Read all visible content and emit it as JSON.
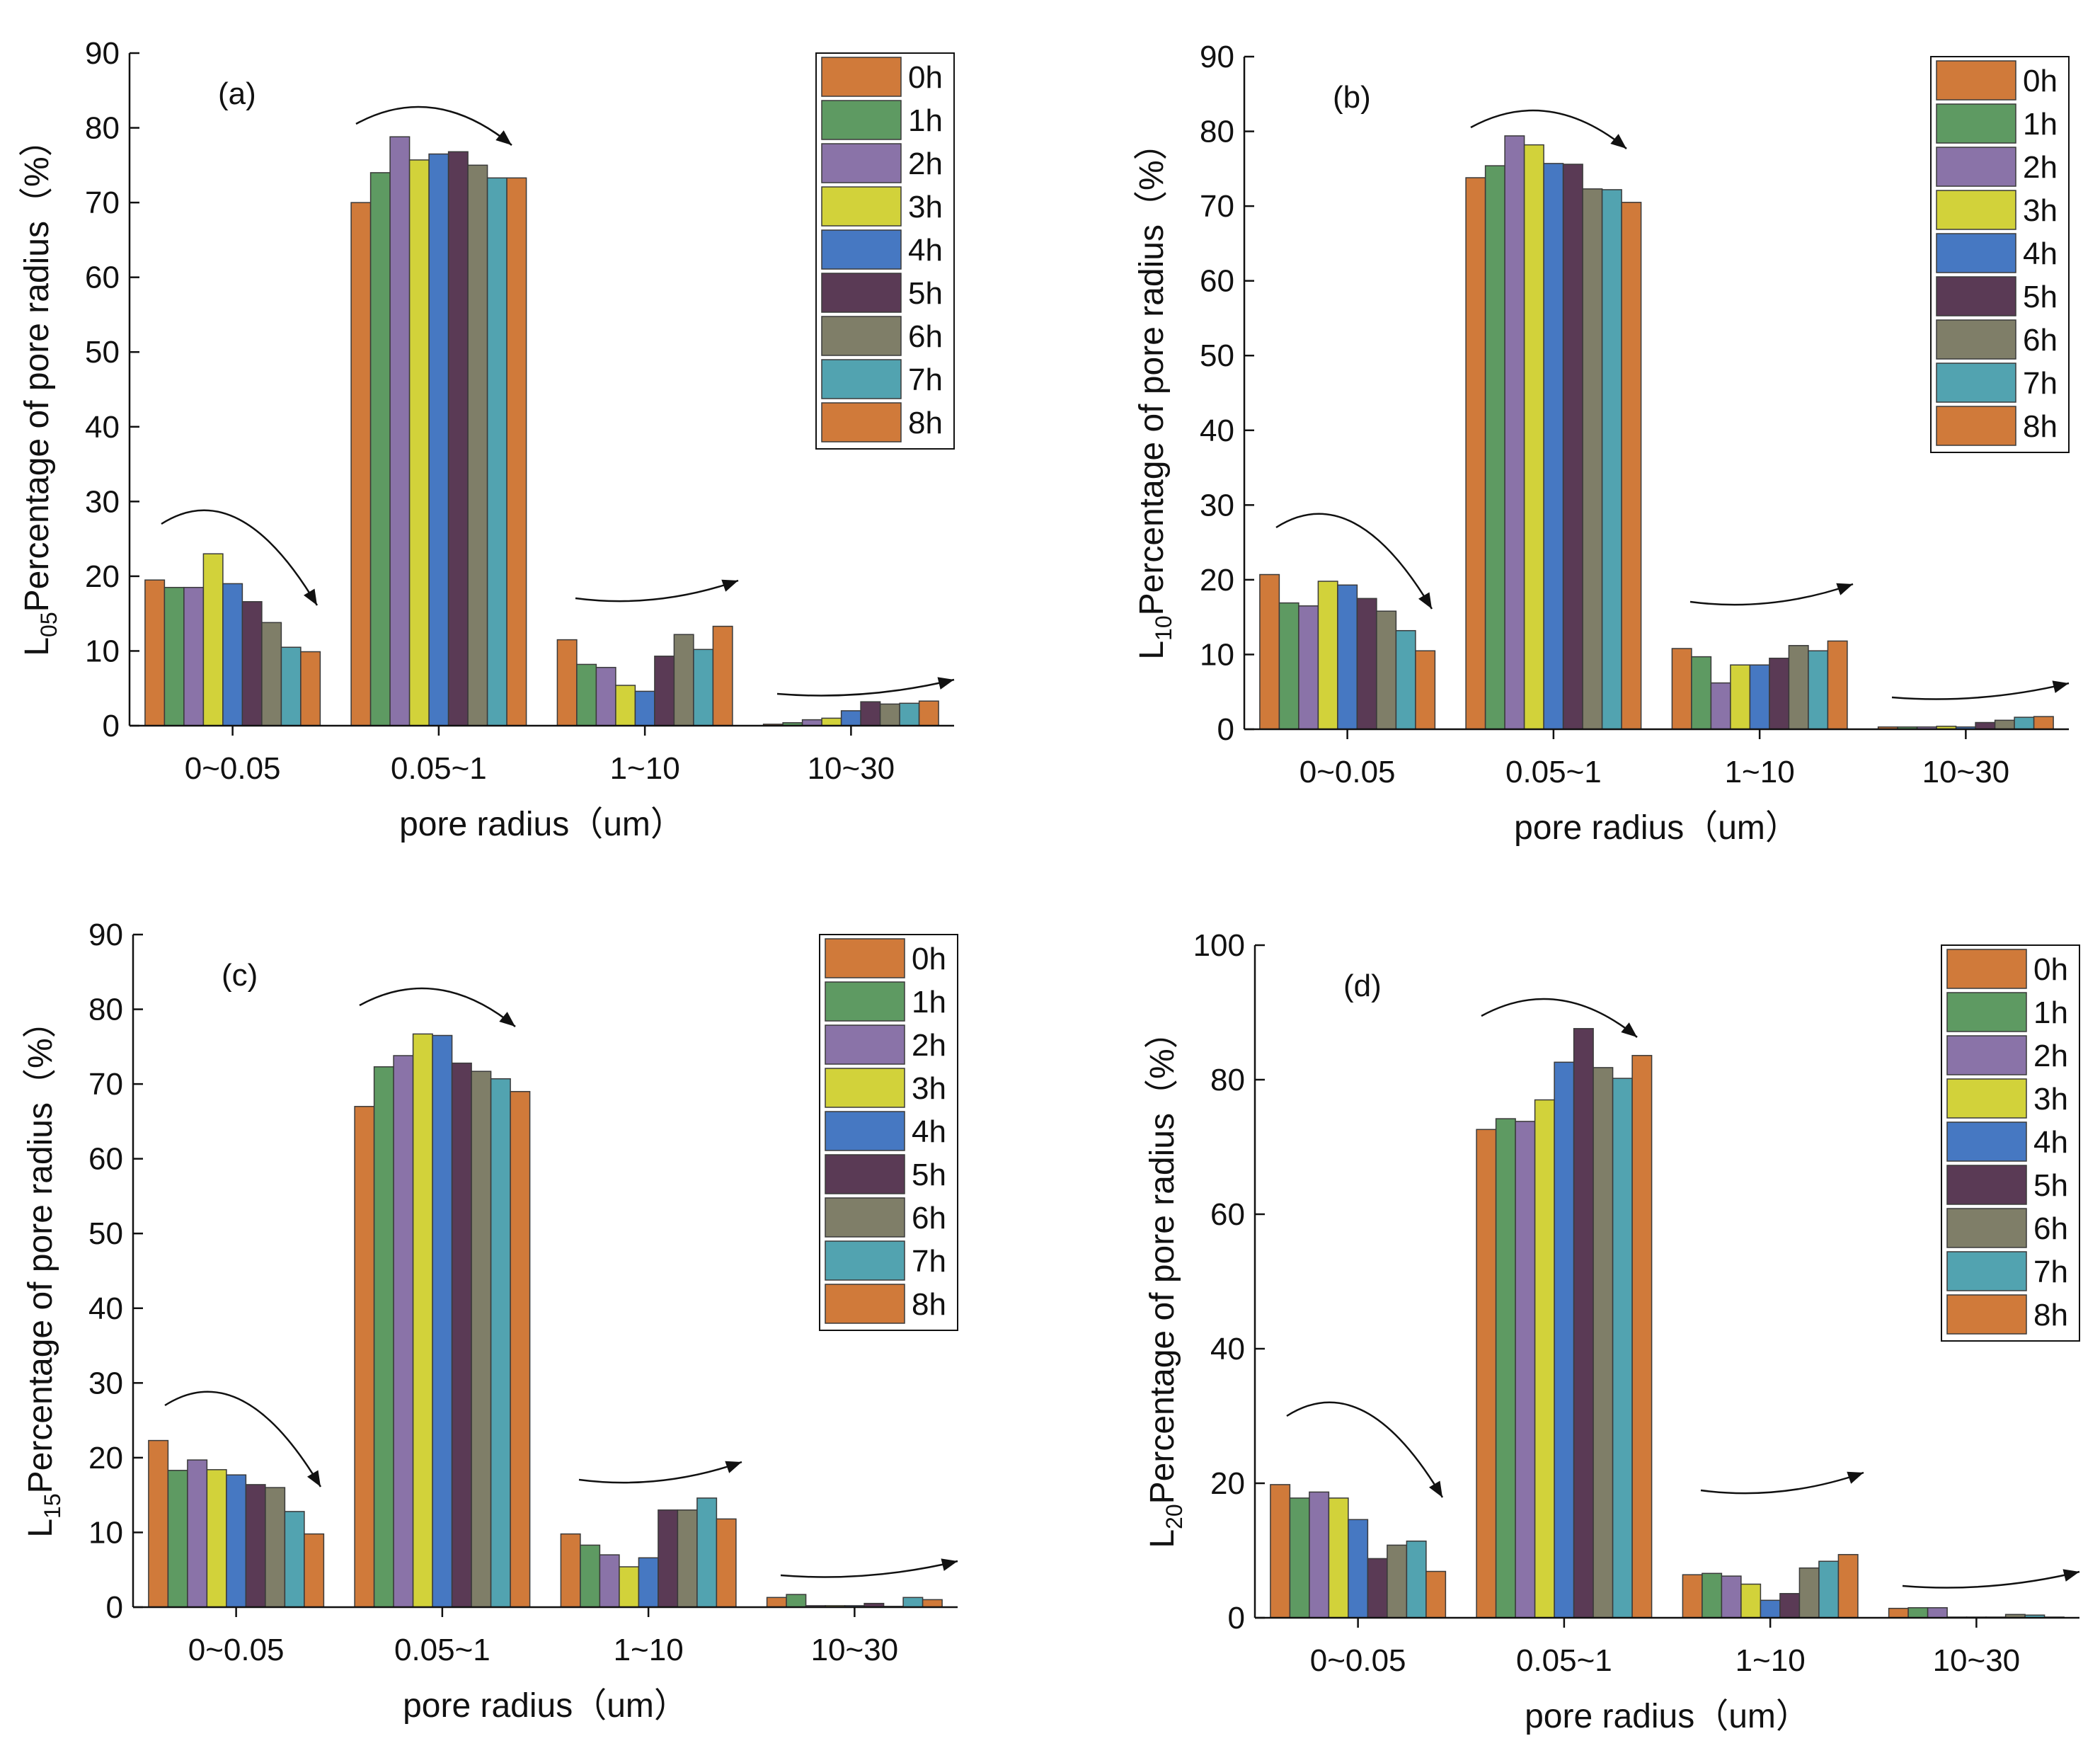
{
  "colors": {
    "0h": "#D07A3A",
    "1h": "#5E9A62",
    "2h": "#8A73A8",
    "3h": "#D2D23A",
    "4h": "#4678C2",
    "5h": "#5A3A55",
    "6h": "#7F7E68",
    "7h": "#52A3B0",
    "8h": "#D07A3A"
  },
  "chart_data": [
    {
      "type": "bar",
      "panel": "(a)",
      "ylabel_prefix": "L",
      "ylabel_sub": "05",
      "ylabel_text": "Percentage of pore radius（%）",
      "xlabel": "pore radius（um）",
      "categories": [
        "0~0.05",
        "0.05~1",
        "1~10",
        "10~30"
      ],
      "ylim": [
        0,
        90
      ],
      "yticks": [
        0,
        10,
        20,
        30,
        40,
        50,
        60,
        70,
        80,
        90
      ],
      "legend_position": "top-right",
      "series": [
        {
          "name": "0h",
          "values": [
            19.5,
            70,
            11.5,
            0.2
          ]
        },
        {
          "name": "1h",
          "values": [
            18.5,
            74,
            8.2,
            0.4
          ]
        },
        {
          "name": "2h",
          "values": [
            18.5,
            78.8,
            7.8,
            0.8
          ]
        },
        {
          "name": "3h",
          "values": [
            23,
            75.7,
            5.4,
            1
          ]
        },
        {
          "name": "4h",
          "values": [
            19,
            76.5,
            4.6,
            2
          ]
        },
        {
          "name": "5h",
          "values": [
            16.6,
            76.8,
            9.3,
            3.2
          ]
        },
        {
          "name": "6h",
          "values": [
            13.8,
            75,
            12.2,
            2.9
          ]
        },
        {
          "name": "7h",
          "values": [
            10.5,
            73.3,
            10.2,
            3
          ]
        },
        {
          "name": "8h",
          "values": [
            9.9,
            73.3,
            13.3,
            3.3
          ]
        }
      ]
    },
    {
      "type": "bar",
      "panel": "(b)",
      "ylabel_prefix": "L",
      "ylabel_sub": "10",
      "ylabel_text": "Percentage of pore radius（%）",
      "xlabel": "pore radius（um）",
      "categories": [
        "0~0.05",
        "0.05~1",
        "1~10",
        "10~30"
      ],
      "ylim": [
        0,
        90
      ],
      "yticks": [
        0,
        10,
        20,
        30,
        40,
        50,
        60,
        70,
        80,
        90
      ],
      "legend_position": "top-right",
      "series": [
        {
          "name": "0h",
          "values": [
            20.7,
            73.8,
            10.8,
            0.3
          ]
        },
        {
          "name": "1h",
          "values": [
            16.9,
            75.4,
            9.7,
            0.3
          ]
        },
        {
          "name": "2h",
          "values": [
            16.5,
            79.4,
            6.2,
            0.3
          ]
        },
        {
          "name": "3h",
          "values": [
            19.8,
            78.2,
            8.6,
            0.4
          ]
        },
        {
          "name": "4h",
          "values": [
            19.3,
            75.7,
            8.6,
            0.3
          ]
        },
        {
          "name": "5h",
          "values": [
            17.5,
            75.6,
            9.5,
            0.9
          ]
        },
        {
          "name": "6h",
          "values": [
            15.8,
            72.3,
            11.2,
            1.2
          ]
        },
        {
          "name": "7h",
          "values": [
            13.2,
            72.2,
            10.5,
            1.6
          ]
        },
        {
          "name": "8h",
          "values": [
            10.5,
            70.5,
            11.8,
            1.7
          ]
        }
      ]
    },
    {
      "type": "bar",
      "panel": "(c)",
      "ylabel_prefix": "L",
      "ylabel_sub": "15",
      "ylabel_text": "Percentage of pore radius（%）",
      "xlabel": "pore radius（um）",
      "categories": [
        "0~0.05",
        "0.05~1",
        "1~10",
        "10~30"
      ],
      "ylim": [
        0,
        90
      ],
      "yticks": [
        0,
        10,
        20,
        30,
        40,
        50,
        60,
        70,
        80,
        90
      ],
      "legend_position": "top-right",
      "series": [
        {
          "name": "0h",
          "values": [
            22.3,
            67,
            9.8,
            1.3
          ]
        },
        {
          "name": "1h",
          "values": [
            18.3,
            72.3,
            8.3,
            1.7
          ]
        },
        {
          "name": "2h",
          "values": [
            19.7,
            73.8,
            7,
            0.2
          ]
        },
        {
          "name": "3h",
          "values": [
            18.4,
            76.7,
            5.4,
            0.2
          ]
        },
        {
          "name": "4h",
          "values": [
            17.7,
            76.5,
            6.6,
            0.2
          ]
        },
        {
          "name": "5h",
          "values": [
            16.4,
            72.8,
            13,
            0.5
          ]
        },
        {
          "name": "6h",
          "values": [
            16,
            71.7,
            13,
            0.1
          ]
        },
        {
          "name": "7h",
          "values": [
            12.8,
            70.7,
            14.6,
            1.3
          ]
        },
        {
          "name": "8h",
          "values": [
            9.8,
            69,
            11.8,
            1
          ]
        }
      ]
    },
    {
      "type": "bar",
      "panel": "(d)",
      "ylabel_prefix": "L",
      "ylabel_sub": "20",
      "ylabel_text": "Percentage of pore radius（%）",
      "xlabel": "pore radius（um）",
      "categories": [
        "0~0.05",
        "0.05~1",
        "1~10",
        "10~30"
      ],
      "ylim": [
        0,
        100
      ],
      "yticks": [
        0,
        20,
        40,
        60,
        80,
        100
      ],
      "legend_position": "top-right",
      "series": [
        {
          "name": "0h",
          "values": [
            19.8,
            72.6,
            6.4,
            1.4
          ]
        },
        {
          "name": "1h",
          "values": [
            17.8,
            74.2,
            6.6,
            1.5
          ]
        },
        {
          "name": "2h",
          "values": [
            18.7,
            73.8,
            6.2,
            1.5
          ]
        },
        {
          "name": "3h",
          "values": [
            17.8,
            77,
            5,
            0.1
          ]
        },
        {
          "name": "4h",
          "values": [
            14.6,
            82.6,
            2.6,
            0.1
          ]
        },
        {
          "name": "5h",
          "values": [
            8.8,
            87.6,
            3.6,
            0.1
          ]
        },
        {
          "name": "6h",
          "values": [
            10.8,
            81.8,
            7.4,
            0.5
          ]
        },
        {
          "name": "7h",
          "values": [
            11.4,
            80.2,
            8.4,
            0.4
          ]
        },
        {
          "name": "8h",
          "values": [
            6.9,
            83.6,
            9.4,
            0.1
          ]
        }
      ]
    }
  ]
}
